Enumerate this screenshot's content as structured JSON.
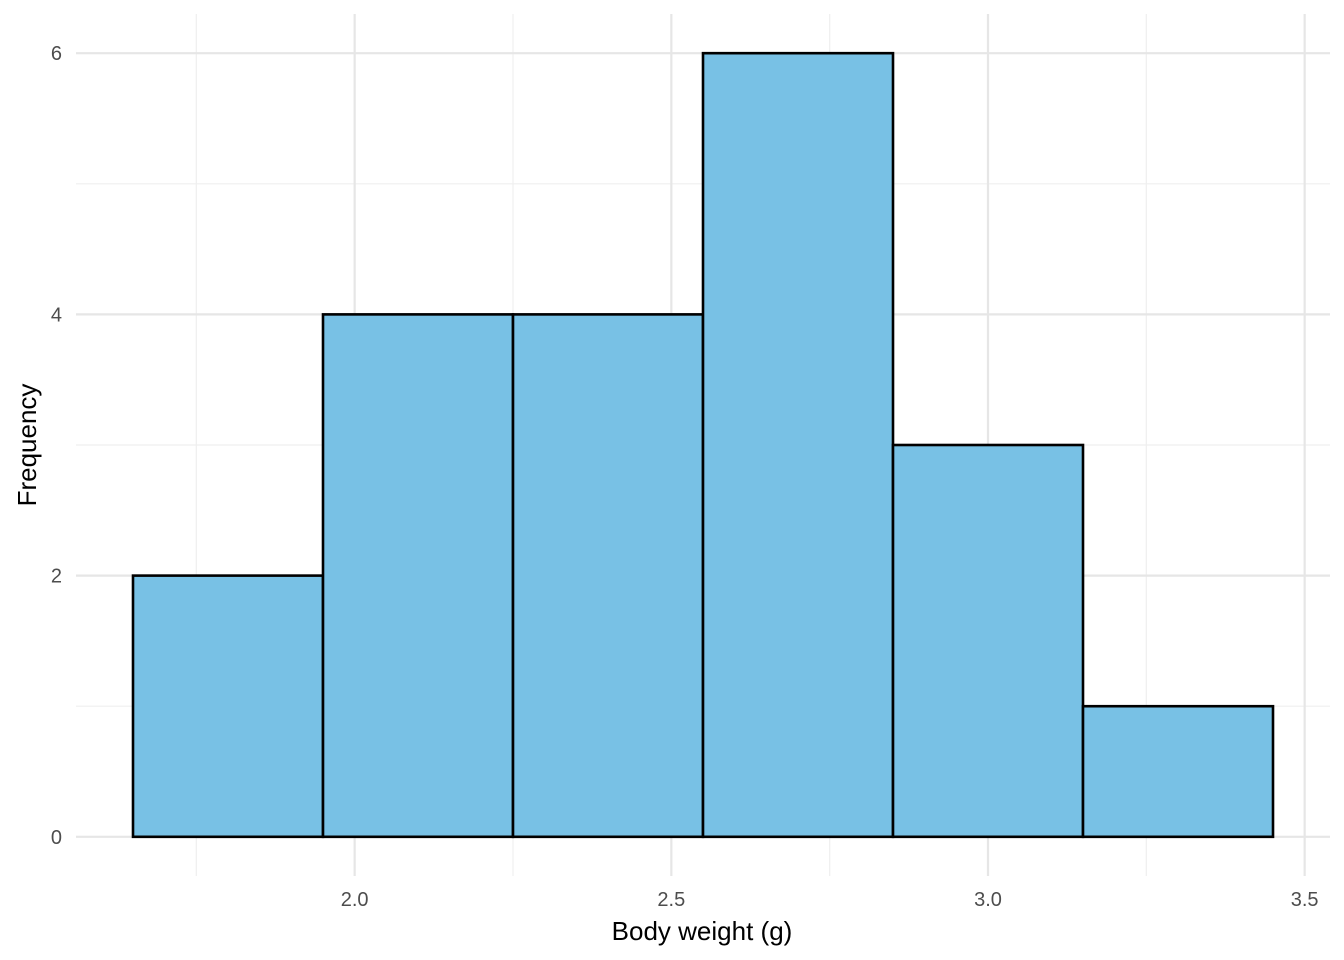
{
  "chart_data": {
    "type": "bar",
    "subtype": "histogram",
    "title": "",
    "xlabel": "Body weight (g)",
    "ylabel": "Frequency",
    "bins": [
      {
        "start": 1.65,
        "end": 1.95,
        "count": 2
      },
      {
        "start": 1.95,
        "end": 2.25,
        "count": 4
      },
      {
        "start": 2.25,
        "end": 2.55,
        "count": 4
      },
      {
        "start": 2.55,
        "end": 2.85,
        "count": 6
      },
      {
        "start": 2.85,
        "end": 3.15,
        "count": 3
      },
      {
        "start": 3.15,
        "end": 3.45,
        "count": 1
      }
    ],
    "xlim": [
      1.56,
      3.54
    ],
    "ylim": [
      -0.3,
      6.3
    ],
    "x_ticks": [
      2.0,
      2.5,
      3.0,
      3.5
    ],
    "x_tick_labels": [
      "2.0",
      "2.5",
      "3.0",
      "3.5"
    ],
    "x_minor_ticks": [
      1.75,
      2.25,
      2.75,
      3.25
    ],
    "y_ticks": [
      0,
      2,
      4,
      6
    ],
    "y_tick_labels": [
      "0",
      "2",
      "4",
      "6"
    ],
    "y_minor_ticks": [
      1,
      3,
      5
    ],
    "grid": true,
    "legend": "none",
    "colors": {
      "bar_fill": "#78c1e5",
      "bar_edge": "#000000"
    }
  }
}
